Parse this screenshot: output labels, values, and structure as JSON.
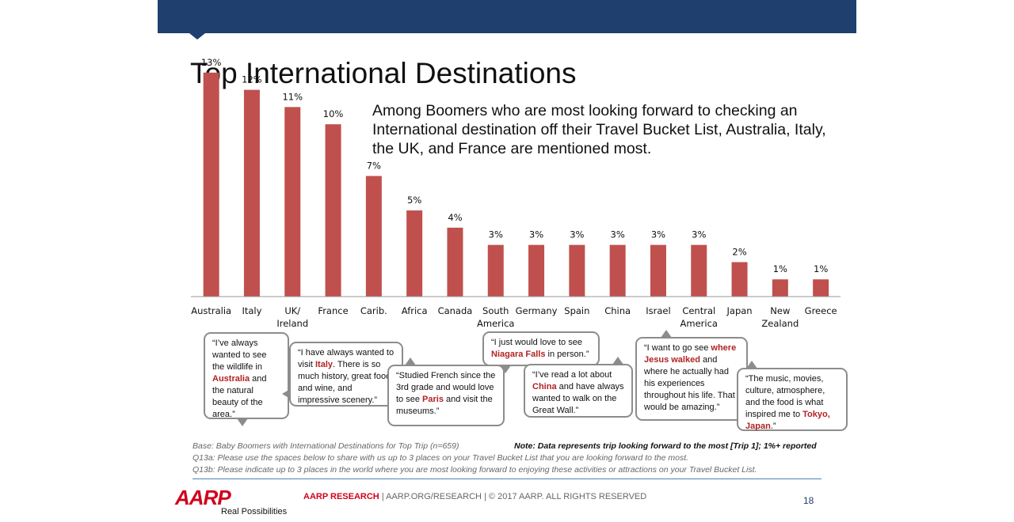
{
  "title": "Top International Destinations",
  "subtitle": "Among Boomers who are most looking forward to checking an International destination off their Travel Bucket List, Australia, Italy, the UK, and France are mentioned most.",
  "colors": {
    "bar": "#c0504d",
    "header": "#1f3f6e",
    "brand_red": "#d0021b",
    "rule": "#4f81bd"
  },
  "chart_data": {
    "type": "bar",
    "categories": [
      "Australia",
      "Italy",
      "UK/\nIreland",
      "France",
      "Carib.",
      "Africa",
      "Canada",
      "South\nAmerica",
      "Germany",
      "Spain",
      "China",
      "Israel",
      "Central\nAmerica",
      "Japan",
      "New\nZealand",
      "Greece"
    ],
    "values": [
      13,
      12,
      11,
      10,
      7,
      5,
      4,
      3,
      3,
      3,
      3,
      3,
      3,
      2,
      1,
      1
    ],
    "data_labels": [
      "13%",
      "12%",
      "11%",
      "10%",
      "7%",
      "5%",
      "4%",
      "3%",
      "3%",
      "3%",
      "3%",
      "3%",
      "3%",
      "2%",
      "1%",
      "1%"
    ],
    "ylim": [
      0,
      14
    ],
    "grid": false,
    "xlabel": "",
    "ylabel": ""
  },
  "quotes": [
    {
      "before": "“I’ve always wanted to see the wildlife in ",
      "highlight": "Australia",
      "after": " and the natural beauty of the area.”"
    },
    {
      "before": "“I have always wanted to visit ",
      "highlight": "Italy",
      "after": ". There is so much history, great food and wine, and impressive scenery.”"
    },
    {
      "before": "“Studied French since the 3rd grade and would love to see ",
      "highlight": "Paris",
      "after": " and visit the museums.”"
    },
    {
      "before": "“I just would love to see ",
      "highlight": "Niagara Falls",
      "after": " in person.”"
    },
    {
      "before": "“I’ve read a lot about ",
      "highlight": "China",
      "after": " and have always wanted to walk on the Great Wall.”"
    },
    {
      "before": "“I want to go see ",
      "highlight": "where Jesus walked",
      "after": " and where he actually had his experiences throughout his life. That would be amazing.”"
    },
    {
      "before": "“The music, movies, culture, atmosphere, and the food is what inspired me to ",
      "highlight": "Tokyo, Japan",
      "after": ".”"
    }
  ],
  "footnotes": {
    "base": "Base:  Baby Boomers with International Destinations for Top Trip (n=659)",
    "q13a": "Q13a:  Please use the spaces below to share with us up to 3 places on your Travel Bucket List that you are looking forward to the most.",
    "q13b": "Q13b: Please indicate up to 3 places in the world where you are most looking forward to enjoying these activities or attractions on your Travel Bucket List.",
    "note": "Note: Data represents trip looking forward to the most [Trip 1]; 1%+ reported"
  },
  "logo": {
    "text": "AARP",
    "tagline": "Real Possibilities"
  },
  "footer": {
    "brand": "AARP RESEARCH",
    "rest": "  |  AARP.ORG/RESEARCH  | © 2017 AARP. ALL RIGHTS RESERVED"
  },
  "page_number": "18"
}
